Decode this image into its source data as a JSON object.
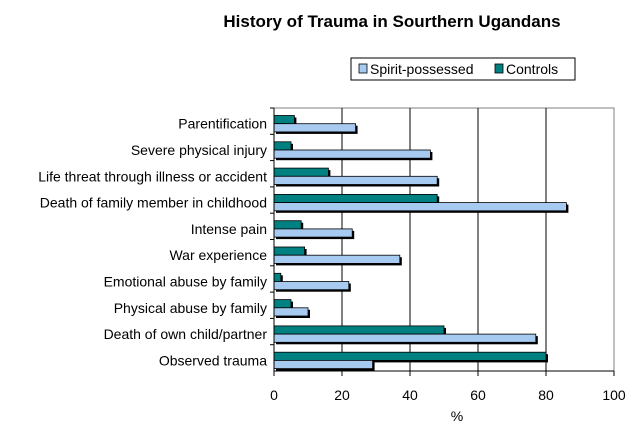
{
  "chart_data": {
    "type": "bar",
    "orientation": "horizontal",
    "title": "History of Trauma in Sourthern Ugandans",
    "xlabel": "%",
    "ylabel": "",
    "xlim": [
      0,
      100
    ],
    "xticks": [
      "0",
      "20",
      "40",
      "60",
      "80",
      "100"
    ],
    "grid": true,
    "legend_position": "top-right",
    "categories": [
      "Parentification",
      "Severe physical injury",
      "Life threat through illness or accident",
      "Death of family member in childhood",
      "Intense pain",
      "War experience",
      "Emotional abuse by family",
      "Physical abuse by family",
      "Death of own child/partner",
      "Observed trauma"
    ],
    "series": [
      {
        "name": "Spirit-possessed",
        "color": "#a6caf0",
        "values": [
          24,
          46,
          48,
          86,
          23,
          37,
          22,
          10,
          77,
          29
        ]
      },
      {
        "name": "Controls",
        "color": "#008080",
        "values": [
          6,
          5,
          16,
          48,
          8,
          9,
          2,
          5,
          50,
          80
        ]
      }
    ]
  }
}
